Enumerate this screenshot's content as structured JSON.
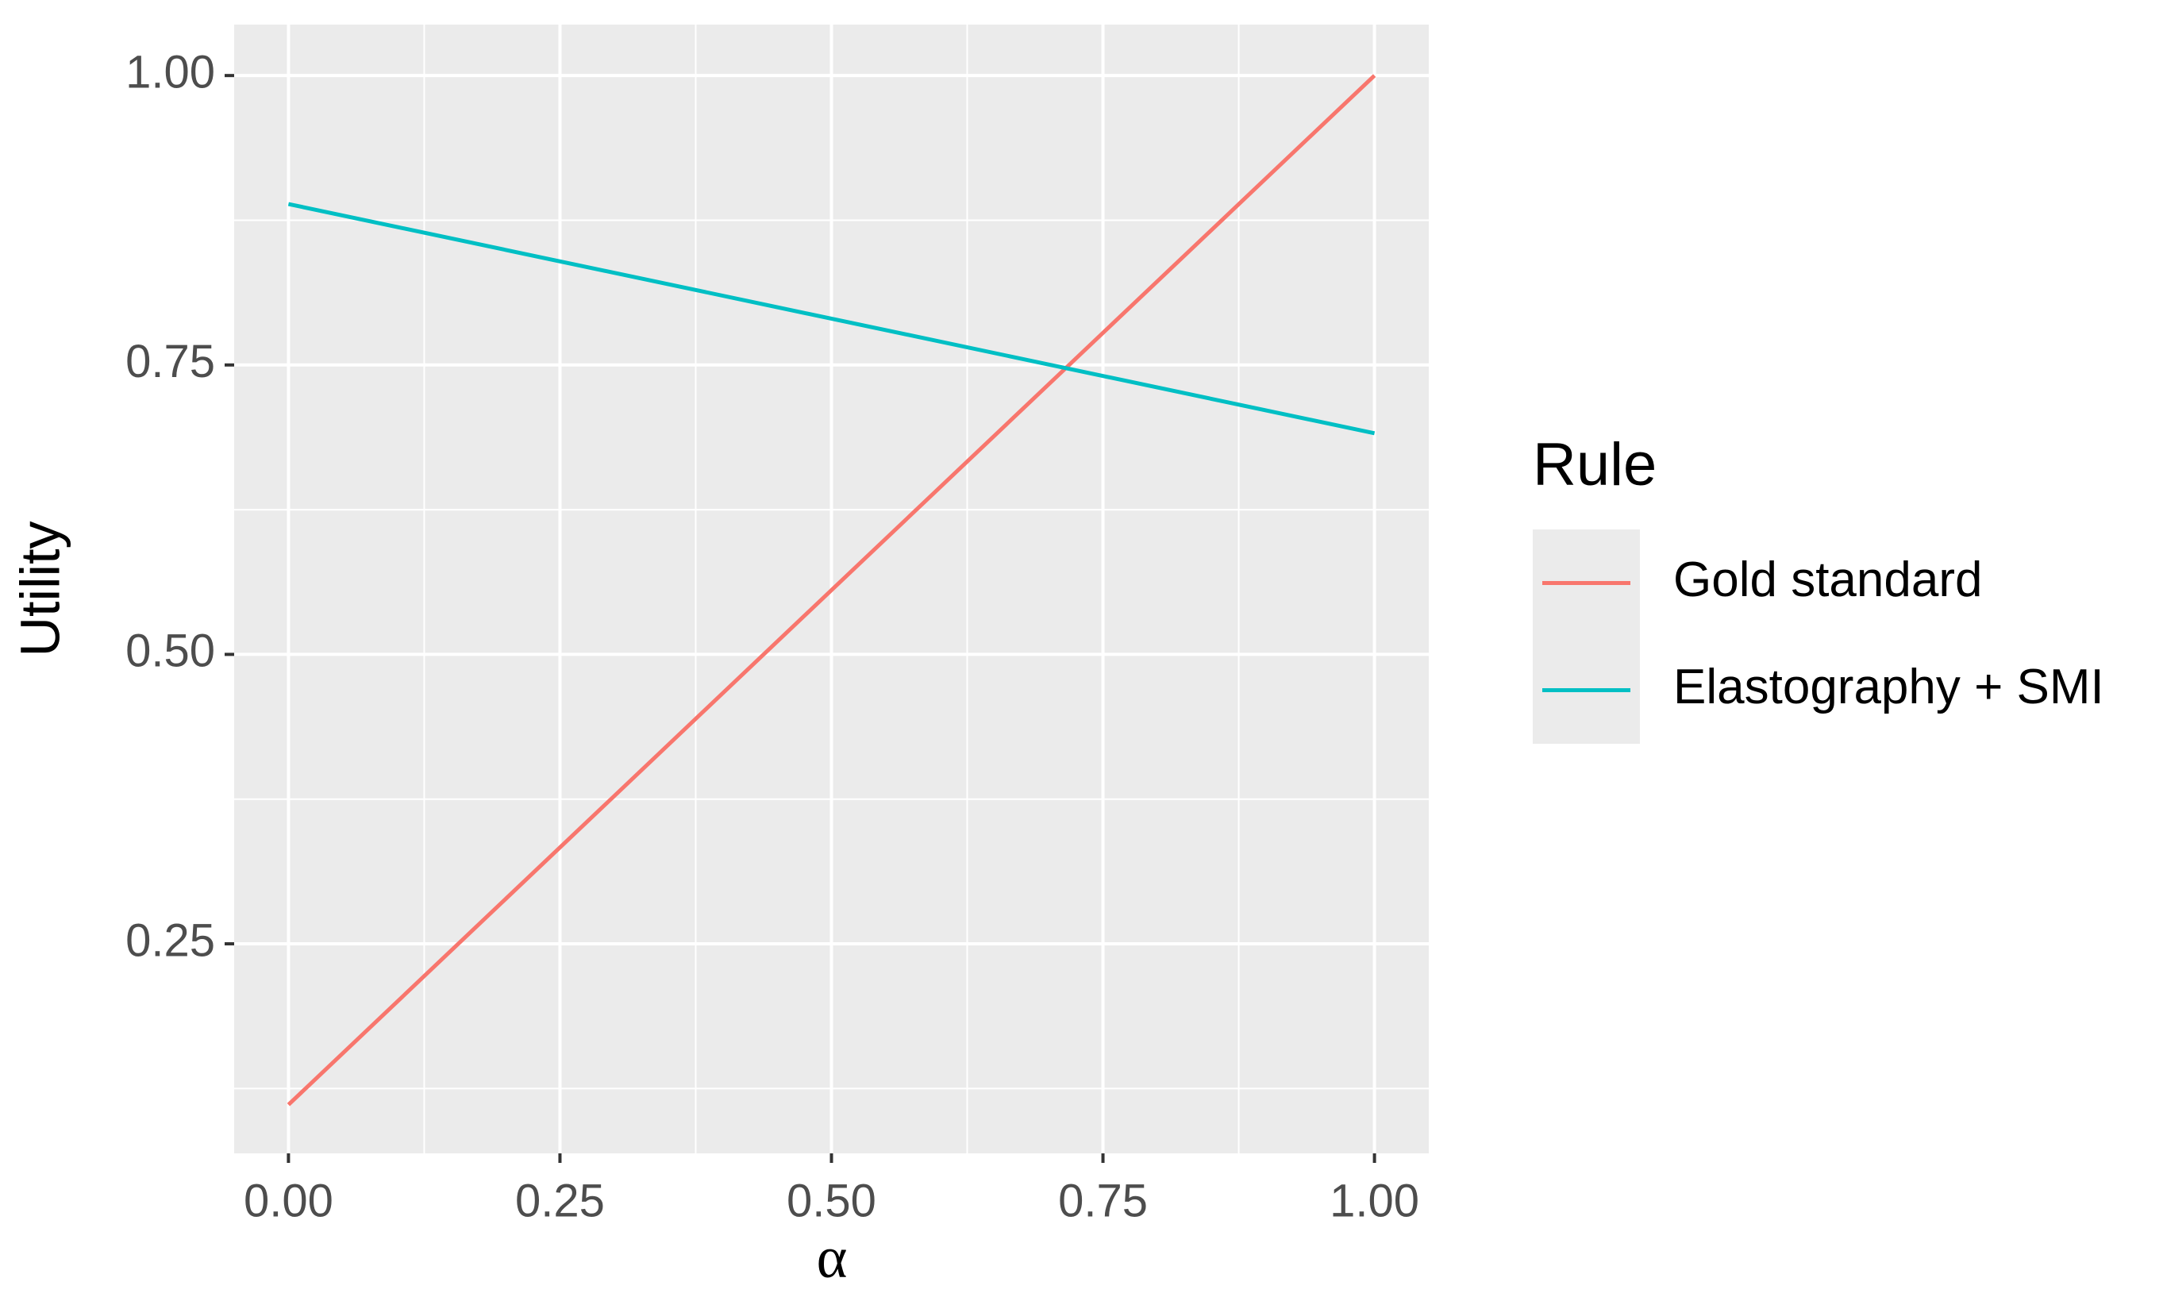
{
  "chart_data": {
    "type": "line",
    "x_label": "α",
    "y_label": "Utility",
    "x": [
      0,
      1
    ],
    "series": [
      {
        "name": "Gold standard",
        "color": "#F8766D",
        "values": [
          0.111,
          1.0
        ]
      },
      {
        "name": "Elastography + SMI",
        "color": "#00BFC4",
        "values": [
          0.889,
          0.691
        ]
      }
    ],
    "xlim": [
      -0.05,
      1.05
    ],
    "xticks": [
      {
        "value": 0,
        "label": "0.00"
      },
      {
        "value": 0.25,
        "label": "0.25"
      },
      {
        "value": 0.5,
        "label": "0.50"
      },
      {
        "value": 0.75,
        "label": "0.75"
      },
      {
        "value": 1,
        "label": "1.00"
      }
    ],
    "ylim": [
      0.069,
      1.044
    ],
    "yticks": [
      {
        "value": 0.25,
        "label": "0.25"
      },
      {
        "value": 0.5,
        "label": "0.50"
      },
      {
        "value": 0.75,
        "label": "0.75"
      },
      {
        "value": 1,
        "label": "1.00"
      }
    ],
    "grid": true,
    "legend_title": "Rule",
    "legend_position": "right"
  }
}
